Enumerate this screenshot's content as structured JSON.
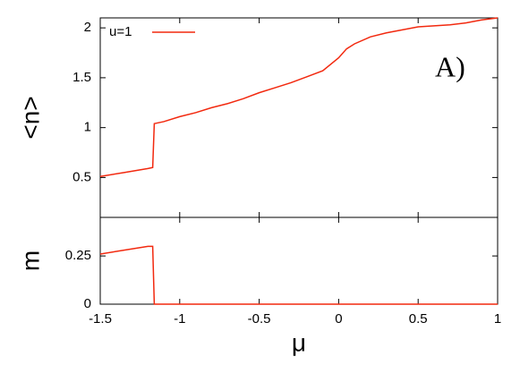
{
  "chart_data": [
    {
      "type": "line",
      "ylabel": "<n>",
      "annotation": "A)",
      "x": [
        -1.5,
        -1.35,
        -1.2,
        -1.17,
        -1.16,
        -1.1,
        -1.0,
        -0.9,
        -0.8,
        -0.7,
        -0.6,
        -0.5,
        -0.4,
        -0.3,
        -0.2,
        -0.1,
        0.0,
        0.05,
        0.1,
        0.2,
        0.3,
        0.4,
        0.5,
        0.6,
        0.7,
        0.8,
        0.9,
        1.0
      ],
      "series": [
        {
          "name": "u=1",
          "color": "#f2290f",
          "values": [
            0.51,
            0.55,
            0.59,
            0.6,
            1.04,
            1.06,
            1.11,
            1.15,
            1.2,
            1.24,
            1.29,
            1.35,
            1.4,
            1.45,
            1.51,
            1.57,
            1.7,
            1.79,
            1.84,
            1.91,
            1.95,
            1.98,
            2.01,
            2.02,
            2.03,
            2.05,
            2.08,
            2.1
          ]
        }
      ],
      "xlim": [
        -1.5,
        1
      ],
      "xticks": [
        -1.5,
        -1,
        -0.5,
        0,
        0.5,
        1
      ],
      "ylim": [
        0.1,
        2.1
      ],
      "yticks": [
        0.5,
        1,
        1.5,
        2
      ]
    },
    {
      "type": "line",
      "ylabel": "m",
      "xlabel": "μ",
      "x": [
        -1.5,
        -1.35,
        -1.2,
        -1.17,
        -1.16,
        -1.0,
        -0.5,
        0.0,
        0.5,
        1.0
      ],
      "series": [
        {
          "color": "#f2290f",
          "values": [
            0.26,
            0.28,
            0.3,
            0.3,
            0,
            0,
            0,
            0,
            0,
            0
          ]
        }
      ],
      "xlim": [
        -1.5,
        1
      ],
      "xticks": [
        -1.5,
        -1,
        -0.5,
        0,
        0.5,
        1
      ],
      "ylim": [
        0,
        0.45
      ],
      "yticks": [
        0,
        0.25
      ]
    }
  ]
}
